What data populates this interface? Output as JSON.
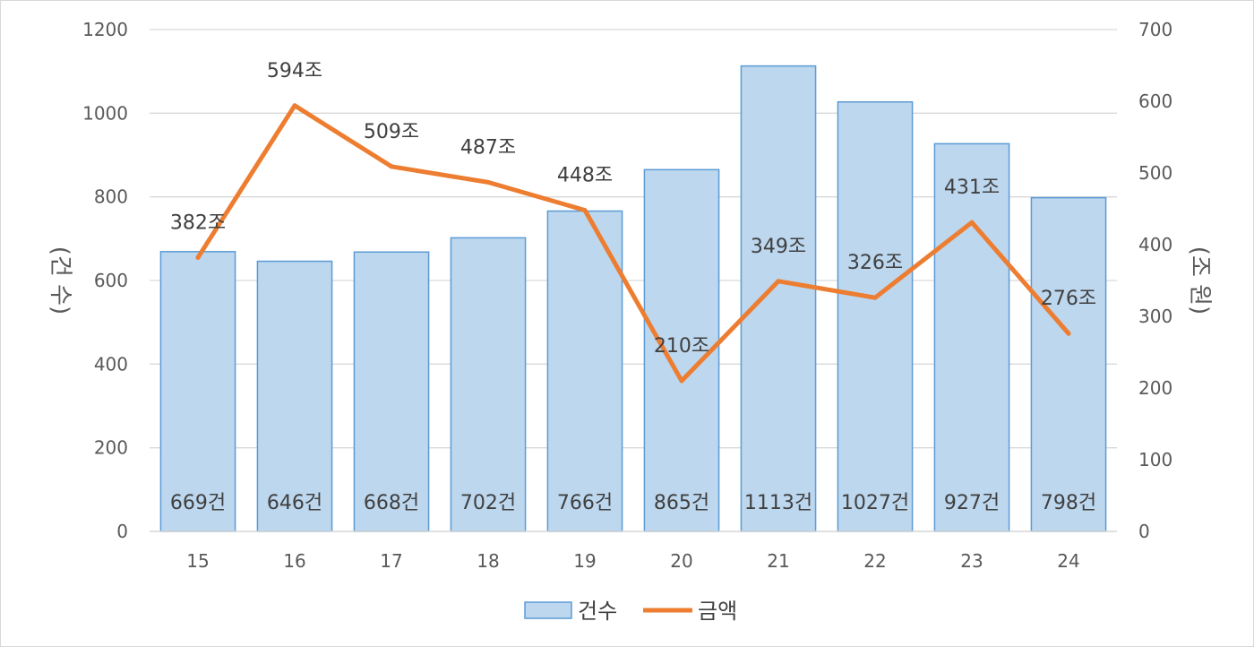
{
  "chart_data": {
    "type": "bar",
    "categories": [
      "15",
      "16",
      "17",
      "18",
      "19",
      "20",
      "21",
      "22",
      "23",
      "24"
    ],
    "series": [
      {
        "name": "건수",
        "type": "bar",
        "axis": "left",
        "values": [
          669,
          646,
          668,
          702,
          766,
          865,
          1113,
          1027,
          927,
          798
        ],
        "labels": [
          "669건",
          "646건",
          "668건",
          "702건",
          "766건",
          "865건",
          "1113건",
          "1027건",
          "927건",
          "798건"
        ],
        "color": "#bdd7ee",
        "border": "#5b9bd5"
      },
      {
        "name": "금액",
        "type": "line",
        "axis": "right",
        "values": [
          382,
          594,
          509,
          487,
          448,
          210,
          349,
          326,
          431,
          276
        ],
        "labels": [
          "382조",
          "594조",
          "509조",
          "487조",
          "448조",
          "210조",
          "349조",
          "326조",
          "431조",
          "276조"
        ],
        "color": "#ed7d31"
      }
    ],
    "ylabel": "(건 수)",
    "y2label": "(조 원)",
    "ylim": [
      0,
      1200
    ],
    "y2lim": [
      0,
      700
    ],
    "yticks": [
      "0",
      "200",
      "400",
      "600",
      "800",
      "1000",
      "1200"
    ],
    "y2ticks": [
      "0",
      "100",
      "200",
      "300",
      "400",
      "500",
      "600",
      "700"
    ],
    "grid": true,
    "legend": "bottom"
  }
}
